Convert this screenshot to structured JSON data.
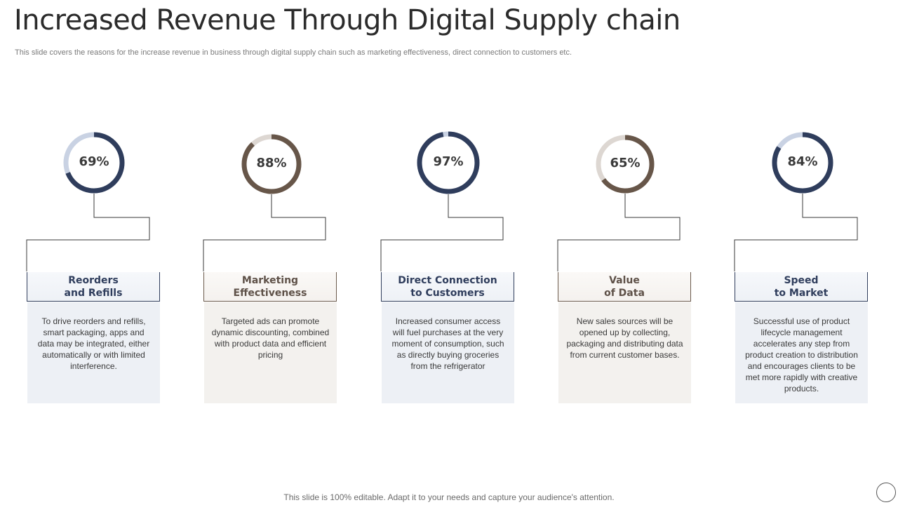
{
  "slide": {
    "title": "Increased Revenue Through Digital Supply chain",
    "subtitle": "This slide covers the reasons for the increase revenue in business through digital supply chain such as marketing effectiveness, direct connection to customers etc.",
    "footer": "This slide is 100% editable. Adapt it to your needs and capture your audience's attention."
  },
  "colors": {
    "navy": "#2f3d5c",
    "navy_track": "#c9d2e3",
    "brown": "#675649",
    "brown_track": "#ddd7d2"
  },
  "items": [
    {
      "percent_label": "69%",
      "percent": 69,
      "theme": "navy",
      "heading": "Reorders\nand Refills",
      "description": "To drive reorders and refills, smart packaging, apps and data may be integrated, either automatically or with limited interference."
    },
    {
      "percent_label": "88%",
      "percent": 88,
      "theme": "brown",
      "heading": "Marketing\nEffectiveness",
      "description": "Targeted ads can promote dynamic discounting, combined with product data and efficient pricing"
    },
    {
      "percent_label": "97%",
      "percent": 97,
      "theme": "navy",
      "heading": "Direct Connection\nto Customers",
      "description": "Increased consumer access will fuel purchases at the very moment of consumption, such as directly buying groceries from the refrigerator"
    },
    {
      "percent_label": "65%",
      "percent": 65,
      "theme": "brown",
      "heading": "Value\nof Data",
      "description": "New sales sources will be opened up by collecting, packaging and distributing data from current customer bases."
    },
    {
      "percent_label": "84%",
      "percent": 84,
      "theme": "navy",
      "heading": "Speed\nto Market",
      "description": "Successful use of product lifecycle management accelerates any step from product creation to distribution and encourages clients to be met more rapidly with creative products."
    }
  ]
}
